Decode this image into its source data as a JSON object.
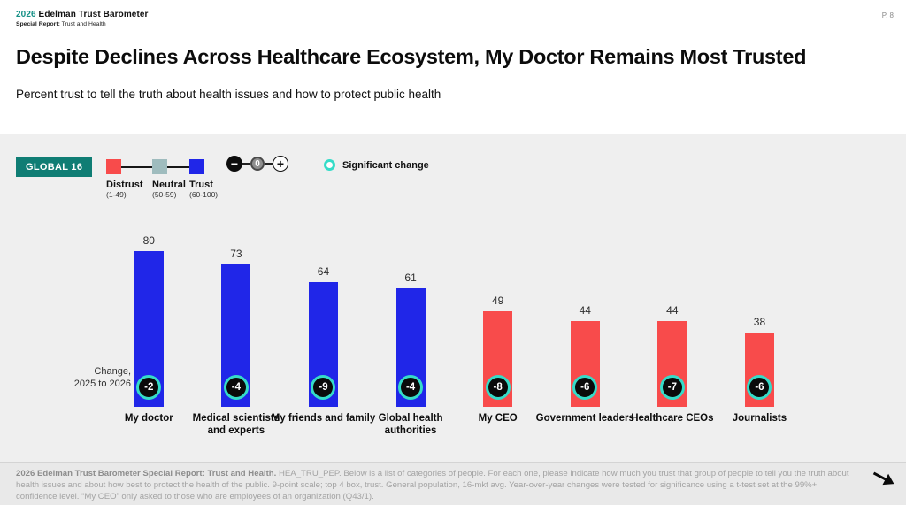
{
  "header": {
    "year": "2026",
    "brand": "Edelman Trust Barometer",
    "report_label": "Special Report:",
    "report_name": "Trust and Health",
    "page_number": "P. 8"
  },
  "title": "Despite Declines Across Healthcare Ecosystem, My Doctor Remains Most Trusted",
  "subtitle": "Percent trust to tell the truth about health issues and how to protect public health",
  "colors": {
    "brand_teal": "#0f7d74",
    "trust_blue": "#2026e8",
    "distrust_red": "#f84b4b",
    "neutral_gray": "#9fbcbe",
    "significant_ring_teal": "#35dcc8",
    "badge_black": "#0a0a0a",
    "panel_gray": "#efefef"
  },
  "legend": {
    "global_badge": "GLOBAL 16",
    "scale": [
      {
        "label": "Distrust",
        "range": "(1-49)",
        "color": "#f84b4b"
      },
      {
        "label": "Neutral",
        "range": "(50-59)",
        "color": "#9fbcbe"
      },
      {
        "label": "Trust",
        "range": "(60-100)",
        "color": "#2026e8"
      }
    ],
    "change_scale": {
      "minus": "−",
      "zero": "0",
      "plus": "+"
    },
    "significant_label": "Significant change"
  },
  "chart": {
    "change_note_line1": "Change,",
    "change_note_line2": "2025 to 2026"
  },
  "chart_data": {
    "type": "bar",
    "title": "Despite Declines Across Healthcare Ecosystem, My Doctor Remains Most Trusted",
    "ylabel": "Percent trust to tell the truth about health issues and how to protect public health",
    "ylim": [
      0,
      100
    ],
    "grid": false,
    "categories": [
      "My doctor",
      "Medical scientists and experts",
      "My friends and family",
      "Global health authorities",
      "My CEO",
      "Government leaders",
      "Healthcare CEOs",
      "Journalists"
    ],
    "values": [
      80,
      73,
      64,
      61,
      49,
      44,
      44,
      38
    ],
    "changes_2025_to_2026": [
      -2,
      -4,
      -9,
      -4,
      -8,
      -6,
      -7,
      -6
    ],
    "significant": [
      true,
      true,
      true,
      true,
      true,
      true,
      true,
      true
    ],
    "bar_color_keys": [
      "trust",
      "trust",
      "trust",
      "trust",
      "distrust",
      "distrust",
      "distrust",
      "distrust"
    ]
  },
  "footer": {
    "bold": "2026 Edelman Trust Barometer Special Report: Trust and Health.",
    "text": " HEA_TRU_PEP. Below is a list of categories of people. For each one, please indicate how much you trust that group of people to tell you the truth about health issues and about how best to protect the health of the public. 9-point scale; top 4 box, trust. General population, 16-mkt avg. Year-over-year changes were tested for significance using a t-test set at the 99%+ confidence level. “My CEO” only asked to those who are employees of an organization (Q43/1)."
  }
}
